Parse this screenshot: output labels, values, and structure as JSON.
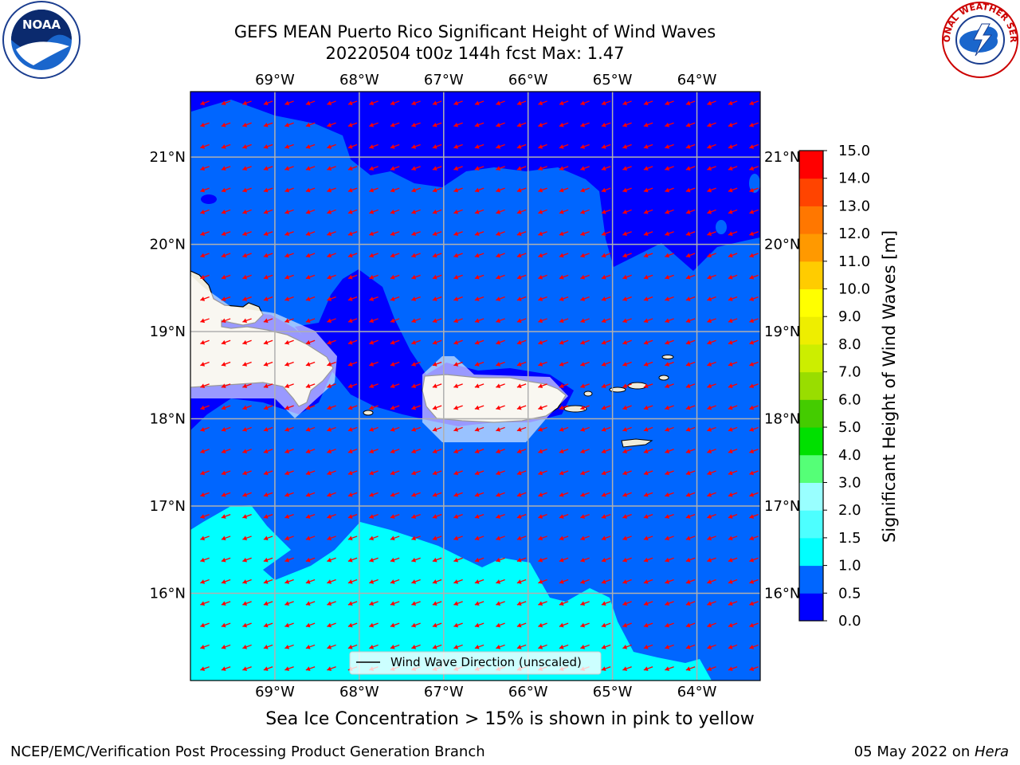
{
  "header": {
    "title_line1": "GEFS MEAN Puerto Rico Significant Height of Wind Waves",
    "title_line2": "20220504 t00z 144h fcst   Max: 1.47"
  },
  "logos": {
    "left": {
      "name": "noaa-logo",
      "text": "NOAA"
    },
    "right": {
      "name": "nws-logo",
      "text": "NATIONAL WEATHER SERVICE"
    }
  },
  "map": {
    "lon_labels": [
      "69°W",
      "68°W",
      "67°W",
      "66°W",
      "65°W",
      "64°W"
    ],
    "lon_values": [
      -69,
      -68,
      -67,
      -66,
      -65,
      -64
    ],
    "lat_labels": [
      "21°N",
      "20°N",
      "19°N",
      "18°N",
      "17°N",
      "16°N"
    ],
    "lat_values": [
      21,
      20,
      19,
      18,
      17,
      16
    ],
    "lon_range": [
      -70.0,
      -63.25
    ],
    "lat_range": [
      15.0,
      21.75
    ],
    "legend_label": "Wind Wave Direction (unscaled)",
    "arrow_color": "#ff0000",
    "arrow_direction_deg": 200,
    "colors": {
      "band_0_0_5": "#0000ff",
      "band_0_5_1_0": "#0066ff",
      "band_1_0_1_5": "#00ffff",
      "land": "#efecdc",
      "grid": "#b0b0b0"
    }
  },
  "colorbar": {
    "label": "Significant Height of Wind Waves [m]",
    "ticks": [
      "0.0",
      "0.5",
      "1.0",
      "1.5",
      "2.0",
      "3.0",
      "4.0",
      "5.0",
      "6.0",
      "7.0",
      "8.0",
      "9.0",
      "10.0",
      "11.0",
      "12.0",
      "13.0",
      "14.0",
      "15.0"
    ],
    "colors": [
      "#0000ff",
      "#0066ff",
      "#00ffff",
      "#4dffff",
      "#99ffff",
      "#55ff77",
      "#00e000",
      "#44cc00",
      "#99dd00",
      "#ccee00",
      "#eeee00",
      "#ffff00",
      "#ffcc00",
      "#ff9900",
      "#ff7700",
      "#ff4400",
      "#ff0000"
    ]
  },
  "captions": {
    "sea_ice": "Sea Ice Concentration > 15% is shown in pink to yellow",
    "footer_left": "NCEP/EMC/Verification Post Processing Product Generation Branch",
    "footer_right_date": "05 May 2022 on ",
    "footer_right_host": "Hera"
  }
}
